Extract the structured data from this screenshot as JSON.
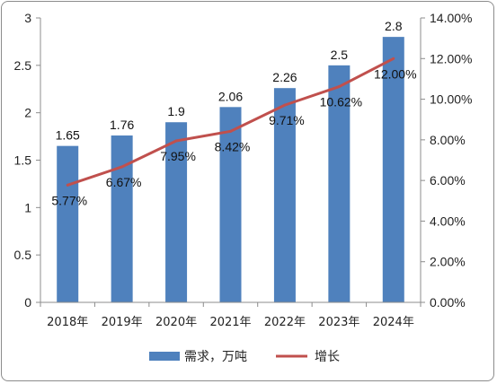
{
  "chart_data": {
    "type": "bar",
    "categories": [
      "2018年",
      "2019年",
      "2020年",
      "2021年",
      "2022年",
      "2023年",
      "2024年"
    ],
    "series": [
      {
        "name": "需求，万吨",
        "kind": "bar",
        "axis": "left",
        "color": "#4f81bd",
        "values": [
          1.65,
          1.76,
          1.9,
          2.06,
          2.26,
          2.5,
          2.8
        ],
        "labels": [
          "1.65",
          "1.76",
          "1.9",
          "2.06",
          "2.26",
          "2.5",
          "2.8"
        ]
      },
      {
        "name": "增长",
        "kind": "line",
        "axis": "right",
        "color": "#c0504d",
        "values": [
          5.77,
          6.67,
          7.95,
          8.42,
          9.71,
          10.62,
          12.0
        ],
        "labels": [
          "5.77%",
          "6.67%",
          "7.95%",
          "8.42%",
          "9.71%",
          "10.62%",
          "12.00%"
        ]
      }
    ],
    "ylim": [
      0,
      3
    ],
    "y_ticks": [
      "0",
      "0.5",
      "1",
      "1.5",
      "2",
      "2.5",
      "3"
    ],
    "y2lim": [
      0,
      14
    ],
    "y2_ticks": [
      "0.00%",
      "2.00%",
      "4.00%",
      "6.00%",
      "8.00%",
      "10.00%",
      "12.00%",
      "14.00%"
    ],
    "title": "",
    "xlabel": "",
    "ylabel": "",
    "grid": false,
    "legend_position": "bottom"
  }
}
